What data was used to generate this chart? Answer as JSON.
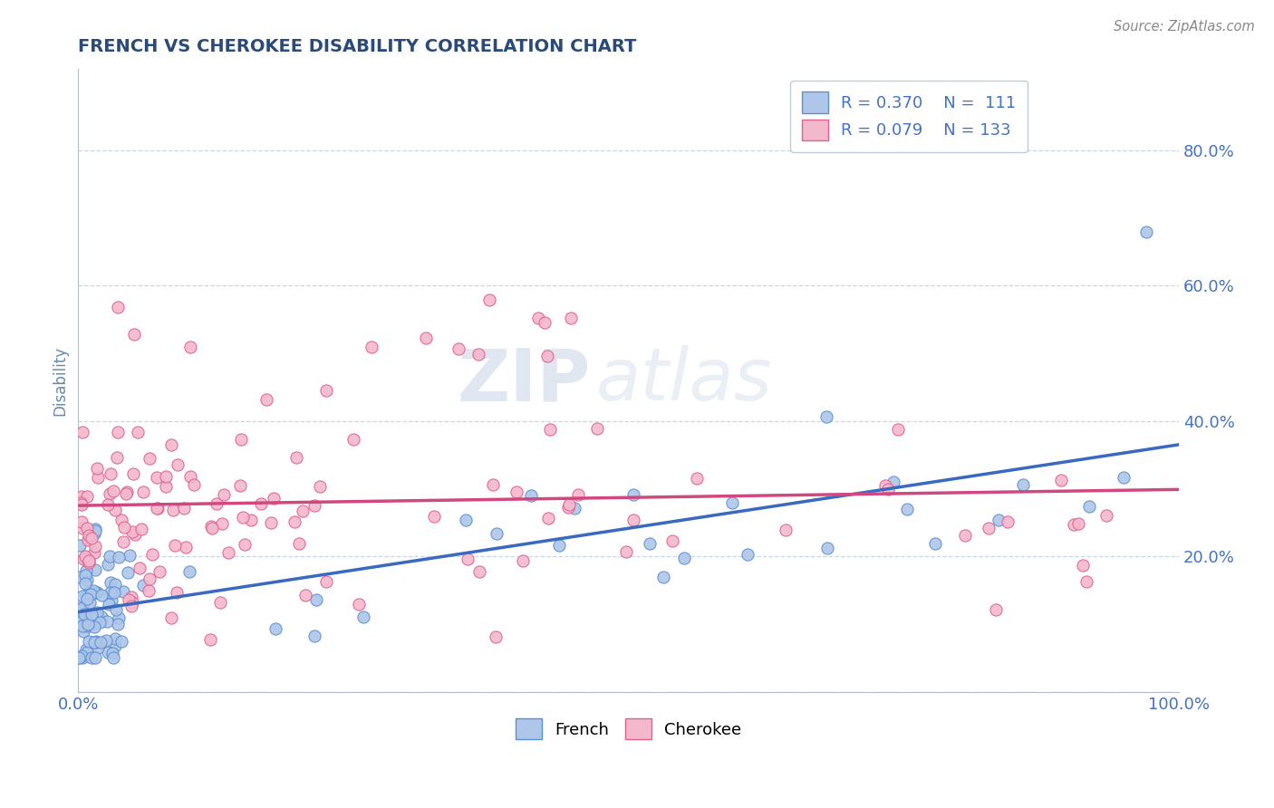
{
  "title": "FRENCH VS CHEROKEE DISABILITY CORRELATION CHART",
  "source": "Source: ZipAtlas.com",
  "ylabel": "Disability",
  "french_color": "#aec6e8",
  "cherokee_color": "#f4b8cc",
  "french_edge_color": "#5b8fd4",
  "cherokee_edge_color": "#e06090",
  "french_line_color": "#3a6abf",
  "cherokee_line_color": "#d04880",
  "legend_text_color": "#4472c4",
  "title_color": "#2a4a7a",
  "ylabel_color": "#6a8aaa",
  "tick_color": "#4472c4",
  "grid_color": "#c8d4e8",
  "background_color": "#ffffff",
  "watermark_zip": "ZIP",
  "watermark_atlas": "atlas",
  "source_color": "#888888"
}
